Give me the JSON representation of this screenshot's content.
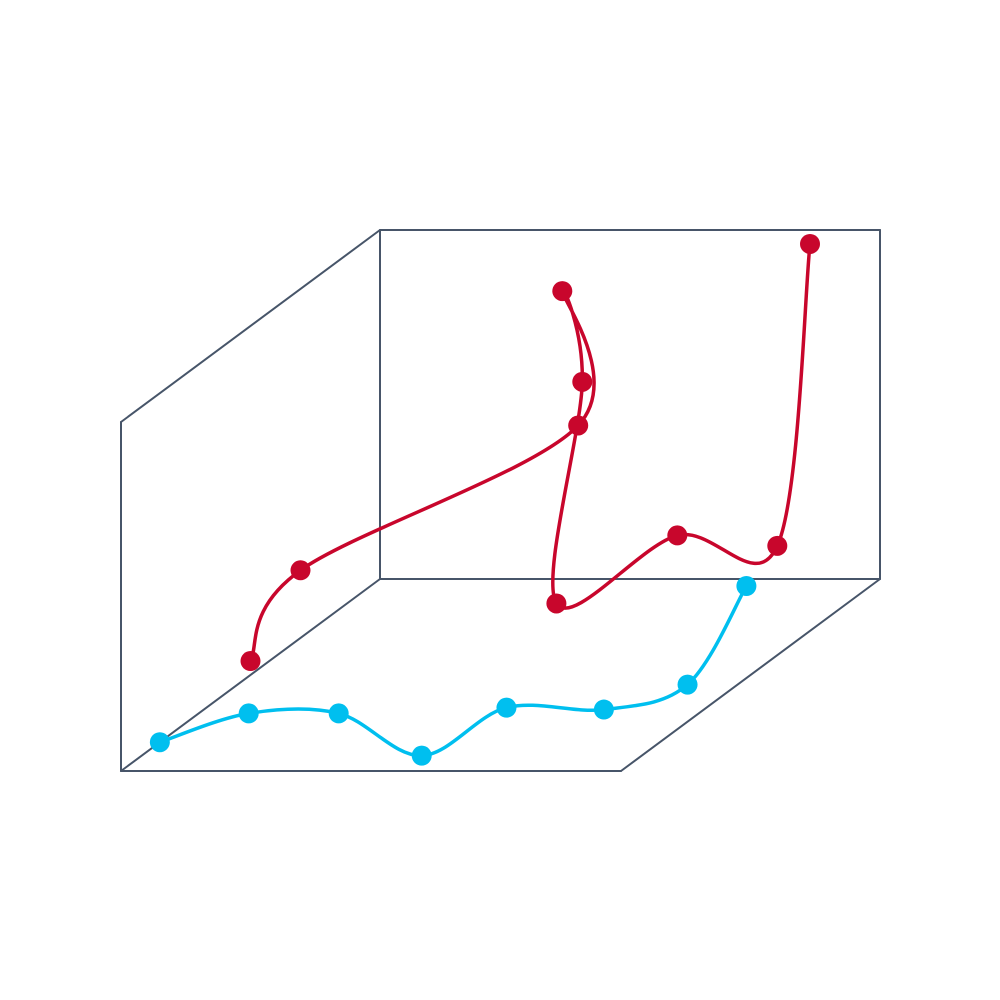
{
  "colors": {
    "box": "#475569",
    "series": [
      "#c8062c",
      "#00bfef"
    ]
  },
  "chart_data": {
    "type": "line",
    "variant": "3d-line",
    "title": "",
    "xlabel": "",
    "ylabel": "",
    "zlabel": "",
    "xlim": [
      0,
      10
    ],
    "ylim": [
      0,
      10
    ],
    "zlim": [
      0,
      10
    ],
    "grid": false,
    "legend": "none",
    "series": [
      {
        "color": "#c8062c",
        "points": [
          {
            "x": 0,
            "y": 5.0,
            "z": 0.4
          },
          {
            "x": 1.0,
            "y": 5.0,
            "z": 3.0
          },
          {
            "x": 5.0,
            "y": 8.0,
            "z": 5.5
          },
          {
            "x": 5.2,
            "y": 7.0,
            "z": 9.9
          },
          {
            "x": 5.6,
            "y": 7.0,
            "z": 7.3
          },
          {
            "x": 5.6,
            "y": 6.0,
            "z": 1.5
          },
          {
            "x": 7.5,
            "y": 7.0,
            "z": 2.9
          },
          {
            "x": 9.5,
            "y": 7.0,
            "z": 2.6
          },
          {
            "x": 8.6,
            "y": 10.0,
            "z": 9.6
          }
        ]
      },
      {
        "color": "#00bfef",
        "points": [
          {
            "x": 0,
            "y": 1.5,
            "z": 0
          },
          {
            "x": 1.0,
            "y": 3.0,
            "z": 0
          },
          {
            "x": 2.8,
            "y": 3.0,
            "z": 0
          },
          {
            "x": 5.6,
            "y": 0.8,
            "z": 0
          },
          {
            "x": 6.0,
            "y": 3.3,
            "z": 0
          },
          {
            "x": 8.0,
            "y": 3.2,
            "z": 0
          },
          {
            "x": 9.0,
            "y": 4.5,
            "z": 0
          },
          {
            "x": 9.4,
            "y": 6.0,
            "z": 2.0
          }
        ]
      }
    ]
  }
}
